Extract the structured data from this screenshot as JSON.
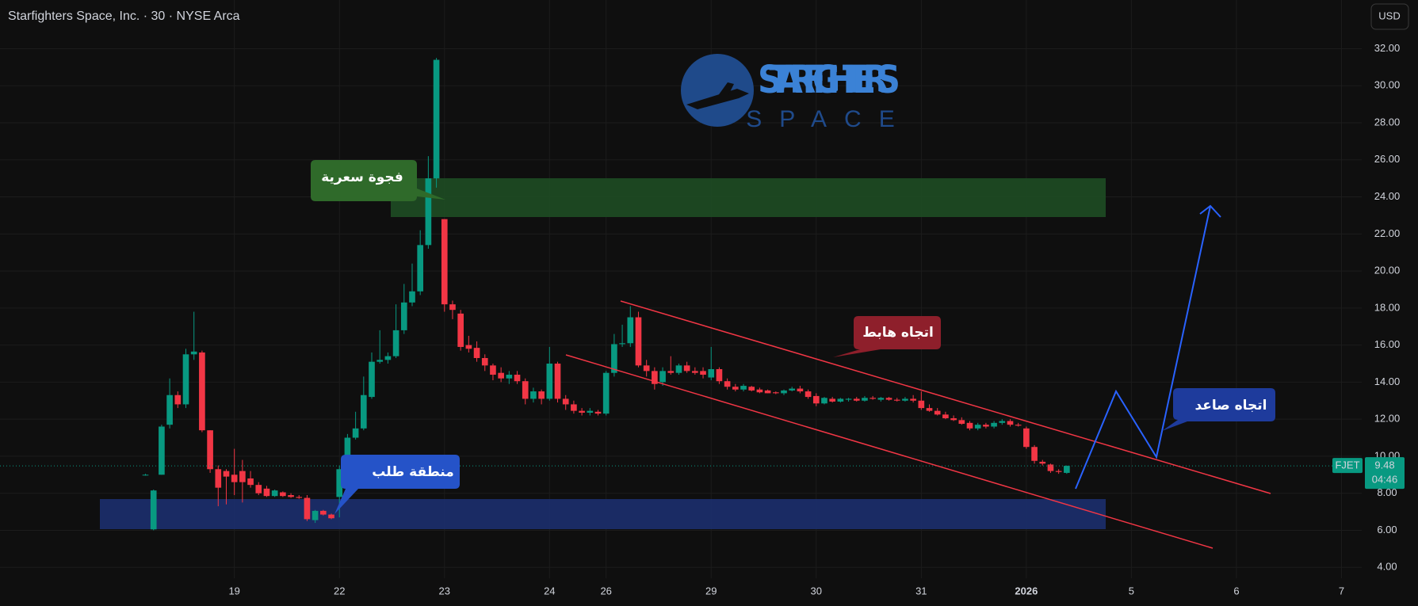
{
  "chart_data": {
    "type": "candlestick",
    "title": "Starfighters Space, Inc. · 30 · NYSE Arca",
    "currency": "USD",
    "symbol": "FJET",
    "last_price": 9.48,
    "countdown": "04:46",
    "logo": {
      "line1": "STARFIGHTERS",
      "line2": "SPACE"
    },
    "annotations": {
      "gap": "فجوة سعرية",
      "downtrend": "اتجاه هابط",
      "demand": "منطقة طلب",
      "uptrend": "اتجاه صاعد"
    },
    "colors": {
      "up": "#089981",
      "down": "#f23645"
    },
    "grid": true,
    "xlim": [
      -29.0,
      139.5
    ],
    "ylim": [
      3.41,
      34.63
    ],
    "xticks": [
      {
        "value": 0,
        "label": "19"
      },
      {
        "value": 13,
        "label": "22"
      },
      {
        "value": 26,
        "label": "23"
      },
      {
        "value": 39,
        "label": "24"
      },
      {
        "value": 46,
        "label": "26"
      },
      {
        "value": 59,
        "label": "29"
      },
      {
        "value": 72,
        "label": "30"
      },
      {
        "value": 85,
        "label": "31"
      },
      {
        "value": 98,
        "label": "2026"
      },
      {
        "value": 111,
        "label": "5"
      },
      {
        "value": 124,
        "label": "6"
      },
      {
        "value": 137,
        "label": "7"
      }
    ],
    "yticks": [
      {
        "value": 4,
        "label": "4.00"
      },
      {
        "value": 6,
        "label": "6.00"
      },
      {
        "value": 8,
        "label": "8.00"
      },
      {
        "value": 10,
        "label": "10.00"
      },
      {
        "value": 12,
        "label": "12.00"
      },
      {
        "value": 14,
        "label": "14.00"
      },
      {
        "value": 16,
        "label": "16.00"
      },
      {
        "value": 18,
        "label": "18.00"
      },
      {
        "value": 20,
        "label": "20.00"
      },
      {
        "value": 22,
        "label": "22.00"
      },
      {
        "value": 24,
        "label": "24.00"
      },
      {
        "value": 26,
        "label": "26.00"
      },
      {
        "value": 28,
        "label": "28.00"
      },
      {
        "value": 30,
        "label": "30.00"
      },
      {
        "value": 32,
        "label": "32.00"
      }
    ],
    "x": [
      -11,
      -10,
      -9,
      -8,
      -7,
      -6,
      -5,
      -4,
      -3,
      -2,
      -1,
      0,
      1,
      2,
      3,
      4,
      5,
      6,
      7,
      8,
      9,
      10,
      11,
      12,
      13,
      14,
      15,
      16,
      17,
      18,
      19,
      20,
      21,
      22,
      23,
      24,
      25,
      26,
      27,
      28,
      29,
      30,
      31,
      32,
      33,
      34,
      35,
      36,
      37,
      38,
      39,
      40,
      41,
      42,
      43,
      44,
      45,
      46,
      47,
      48,
      49,
      50,
      51,
      52,
      53,
      54,
      55,
      56,
      57,
      58,
      59,
      60,
      61,
      62,
      63,
      64,
      65,
      66,
      67,
      68,
      69,
      70,
      71,
      72,
      73,
      74,
      75,
      76,
      77,
      78,
      79,
      80,
      81,
      82,
      83,
      84,
      85,
      86,
      87,
      88,
      89,
      90,
      91,
      92,
      93,
      94,
      95,
      96,
      97,
      98,
      99,
      100,
      101,
      102,
      103
    ],
    "open": [
      9.0,
      6.05,
      9.0,
      11.7,
      13.3,
      12.8,
      15.5,
      15.6,
      11.4,
      9.3,
      9.2,
      9.0,
      9.2,
      8.8,
      8.45,
      8.25,
      7.85,
      8.05,
      7.9,
      7.8,
      7.75,
      6.55,
      7.05,
      6.85,
      7.8,
      9.3,
      11.0,
      11.5,
      13.2,
      15.1,
      15.2,
      15.4,
      16.8,
      18.3,
      18.9,
      21.4,
      25.0,
      22.8,
      18.2,
      17.7,
      16.0,
      15.85,
      15.3,
      14.9,
      14.5,
      14.2,
      14.4,
      14.05,
      13.1,
      13.5,
      13.1,
      15.0,
      13.1,
      12.8,
      12.45,
      12.35,
      12.4,
      12.3,
      14.5,
      16.05,
      16.1,
      17.5,
      14.9,
      14.6,
      14.0,
      14.6,
      14.5,
      14.9,
      14.6,
      14.6,
      14.25,
      14.7,
      14.05,
      13.75,
      13.6,
      13.75,
      13.6,
      13.55,
      13.45,
      13.4,
      13.55,
      13.65,
      13.5,
      13.25,
      12.85,
      13.1,
      12.95,
      13.05,
      13.1,
      13.0,
      13.15,
      13.05,
      13.15,
      13.05,
      13.0,
      13.1,
      13.0,
      12.6,
      12.45,
      12.25,
      12.05,
      11.95,
      11.8,
      11.5,
      11.7,
      11.6,
      11.8,
      11.9,
      11.7,
      11.5,
      10.5,
      9.7,
      9.55,
      9.2,
      9.1
    ],
    "high": [
      9.05,
      8.2,
      11.7,
      14.2,
      13.5,
      15.8,
      17.8,
      15.7,
      11.4,
      9.5,
      9.3,
      10.4,
      9.8,
      9.2,
      8.6,
      8.4,
      8.2,
      8.1,
      8.0,
      7.9,
      7.9,
      7.1,
      7.1,
      6.9,
      9.5,
      11.2,
      12.4,
      14.3,
      15.6,
      16.8,
      15.6,
      18.2,
      19.3,
      20.4,
      22.2,
      26.2,
      31.5,
      22.8,
      18.4,
      17.9,
      16.5,
      16.2,
      15.5,
      15.0,
      14.8,
      14.6,
      14.6,
      14.2,
      13.7,
      13.6,
      15.9,
      15.1,
      13.3,
      13.0,
      12.6,
      12.6,
      12.5,
      14.6,
      16.6,
      17.1,
      18.1,
      17.8,
      15.2,
      14.8,
      14.8,
      15.4,
      15.0,
      15.1,
      14.8,
      14.8,
      15.9,
      14.8,
      14.2,
      13.9,
      13.9,
      13.8,
      13.7,
      13.6,
      13.5,
      13.6,
      13.75,
      13.8,
      13.6,
      13.4,
      13.2,
      13.2,
      13.15,
      13.15,
      13.2,
      13.25,
      13.25,
      13.2,
      13.2,
      13.15,
      13.2,
      13.3,
      13.5,
      12.8,
      12.6,
      12.4,
      12.2,
      12.1,
      11.9,
      11.8,
      11.8,
      11.9,
      12.0,
      12.0,
      11.8,
      11.6,
      10.6,
      9.8,
      9.6,
      9.3,
      9.5
    ],
    "low": [
      8.95,
      6.0,
      9.0,
      11.5,
      12.6,
      12.6,
      15.2,
      11.3,
      9.1,
      7.3,
      7.4,
      7.9,
      7.5,
      8.3,
      7.9,
      7.8,
      7.8,
      7.8,
      7.75,
      7.7,
      6.5,
      6.4,
      6.8,
      6.6,
      6.7,
      9.2,
      10.9,
      11.4,
      13.1,
      15.0,
      15.0,
      15.3,
      16.6,
      18.1,
      18.7,
      21.2,
      24.5,
      17.8,
      17.4,
      15.7,
      15.6,
      15.1,
      14.6,
      14.1,
      14.0,
      13.9,
      13.9,
      12.8,
      12.9,
      12.8,
      13.0,
      12.9,
      12.5,
      12.3,
      12.2,
      12.2,
      12.2,
      12.2,
      14.3,
      15.9,
      15.9,
      14.8,
      14.3,
      13.6,
      13.8,
      14.4,
      14.4,
      14.5,
      14.4,
      14.2,
      14.1,
      13.9,
      13.6,
      13.5,
      13.5,
      13.5,
      13.4,
      13.4,
      13.35,
      13.3,
      13.5,
      13.4,
      13.1,
      12.7,
      12.8,
      12.9,
      12.9,
      12.95,
      12.95,
      12.95,
      13.05,
      12.95,
      13.0,
      12.95,
      12.95,
      12.9,
      12.5,
      12.4,
      12.2,
      12.0,
      11.9,
      11.7,
      11.4,
      11.4,
      11.5,
      11.5,
      11.7,
      11.6,
      11.6,
      10.4,
      9.6,
      9.5,
      9.1,
      9.05,
      9.05
    ],
    "close": [
      9.0,
      8.15,
      11.6,
      13.3,
      12.8,
      15.5,
      15.65,
      11.4,
      9.3,
      8.3,
      8.9,
      8.6,
      8.6,
      8.45,
      8.0,
      7.85,
      8.15,
      7.85,
      7.8,
      7.75,
      6.6,
      7.05,
      6.85,
      6.65,
      9.3,
      11.0,
      11.5,
      13.3,
      15.1,
      15.2,
      15.4,
      16.8,
      18.3,
      18.9,
      21.4,
      25.0,
      31.4,
      18.2,
      17.9,
      15.9,
      15.8,
      15.3,
      14.9,
      14.4,
      14.2,
      14.4,
      14.05,
      13.1,
      13.5,
      13.1,
      15.0,
      13.1,
      12.8,
      12.45,
      12.35,
      12.45,
      12.3,
      14.5,
      16.05,
      16.1,
      17.5,
      14.9,
      14.6,
      13.9,
      14.6,
      14.5,
      14.9,
      14.6,
      14.5,
      14.4,
      14.7,
      14.05,
      13.75,
      13.6,
      13.8,
      13.55,
      13.45,
      13.4,
      13.4,
      13.55,
      13.65,
      13.5,
      13.2,
      12.85,
      13.15,
      12.95,
      13.1,
      13.1,
      13.0,
      13.15,
      13.1,
      13.15,
      13.05,
      13.0,
      13.1,
      13.0,
      12.6,
      12.45,
      12.25,
      12.05,
      11.95,
      11.75,
      11.5,
      11.7,
      11.6,
      11.8,
      11.9,
      11.7,
      11.65,
      10.5,
      9.75,
      9.6,
      9.2,
      9.15,
      9.48
    ]
  }
}
